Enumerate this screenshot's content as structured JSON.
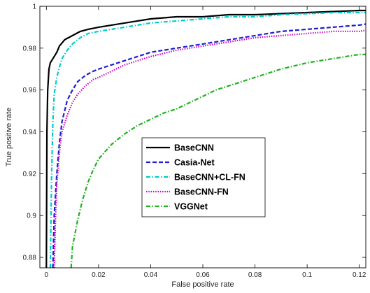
{
  "chart_data": {
    "type": "line",
    "xlabel": "False positive rate",
    "ylabel": "True positive rate",
    "xlim": [
      -0.0025,
      0.1225
    ],
    "ylim": [
      0.875,
      1.0
    ],
    "x_ticks": [
      0,
      0.02,
      0.04,
      0.06,
      0.08,
      0.1,
      0.12
    ],
    "x_tick_labels": [
      "0",
      "0.02",
      "0.04",
      "0.06",
      "0.08",
      "0.1",
      "0.12"
    ],
    "y_ticks": [
      0.88,
      0.9,
      0.92,
      0.94,
      0.96,
      0.98,
      1.0
    ],
    "y_tick_labels": [
      "0.88",
      "0.9",
      "0.92",
      "0.94",
      "0.96",
      "0.98",
      "1"
    ],
    "grid": false,
    "legend_position": "center-left",
    "series": [
      {
        "name": "BaseCNN",
        "color": "#000000",
        "dash": "solid",
        "x": [
          0.0,
          0.0002,
          0.0005,
          0.001,
          0.0015,
          0.002,
          0.003,
          0.004,
          0.005,
          0.007,
          0.01,
          0.013,
          0.016,
          0.02,
          0.025,
          0.03,
          0.035,
          0.04,
          0.05,
          0.06,
          0.07,
          0.08,
          0.09,
          0.1,
          0.11,
          0.12,
          0.1225
        ],
        "y": [
          0.875,
          0.94,
          0.96,
          0.97,
          0.973,
          0.974,
          0.976,
          0.978,
          0.981,
          0.984,
          0.986,
          0.988,
          0.989,
          0.99,
          0.991,
          0.992,
          0.993,
          0.994,
          0.995,
          0.995,
          0.996,
          0.996,
          0.9965,
          0.997,
          0.9975,
          0.998,
          0.998
        ]
      },
      {
        "name": "Casia-Net",
        "color": "#1f1fd0",
        "dash": "dashed",
        "x": [
          0.0025,
          0.003,
          0.004,
          0.005,
          0.006,
          0.008,
          0.01,
          0.012,
          0.015,
          0.018,
          0.02,
          0.025,
          0.03,
          0.035,
          0.04,
          0.05,
          0.06,
          0.07,
          0.08,
          0.09,
          0.1,
          0.11,
          0.12,
          0.1225
        ],
        "y": [
          0.875,
          0.9,
          0.92,
          0.935,
          0.945,
          0.955,
          0.96,
          0.964,
          0.967,
          0.969,
          0.97,
          0.972,
          0.974,
          0.976,
          0.978,
          0.98,
          0.982,
          0.984,
          0.986,
          0.988,
          0.989,
          0.99,
          0.991,
          0.9915
        ]
      },
      {
        "name": "BaseCNN+CL-FN",
        "color": "#00cccc",
        "dash": "dashdot",
        "x": [
          0.0015,
          0.002,
          0.0025,
          0.003,
          0.004,
          0.005,
          0.006,
          0.008,
          0.01,
          0.013,
          0.016,
          0.02,
          0.025,
          0.03,
          0.035,
          0.04,
          0.05,
          0.06,
          0.07,
          0.08,
          0.09,
          0.1,
          0.11,
          0.12,
          0.1225
        ],
        "y": [
          0.875,
          0.92,
          0.945,
          0.958,
          0.966,
          0.971,
          0.975,
          0.979,
          0.982,
          0.985,
          0.987,
          0.988,
          0.989,
          0.99,
          0.991,
          0.992,
          0.993,
          0.994,
          0.995,
          0.995,
          0.996,
          0.9965,
          0.997,
          0.997,
          0.997
        ]
      },
      {
        "name": "BaseCNN-FN",
        "color": "#cc00cc",
        "dash": "dotted",
        "x": [
          0.003,
          0.0035,
          0.004,
          0.005,
          0.006,
          0.008,
          0.01,
          0.012,
          0.015,
          0.018,
          0.02,
          0.025,
          0.03,
          0.035,
          0.04,
          0.05,
          0.06,
          0.07,
          0.08,
          0.09,
          0.1,
          0.11,
          0.12,
          0.1225
        ],
        "y": [
          0.875,
          0.9,
          0.915,
          0.93,
          0.94,
          0.948,
          0.954,
          0.958,
          0.962,
          0.965,
          0.966,
          0.969,
          0.972,
          0.974,
          0.976,
          0.979,
          0.981,
          0.983,
          0.985,
          0.986,
          0.987,
          0.988,
          0.988,
          0.9885
        ]
      },
      {
        "name": "VGGNet",
        "color": "#1fb31f",
        "dash": "dashdot",
        "x": [
          0.0095,
          0.01,
          0.012,
          0.014,
          0.016,
          0.018,
          0.02,
          0.025,
          0.03,
          0.035,
          0.04,
          0.045,
          0.05,
          0.055,
          0.06,
          0.065,
          0.07,
          0.08,
          0.09,
          0.1,
          0.11,
          0.115,
          0.12,
          0.1225
        ],
        "y": [
          0.875,
          0.885,
          0.898,
          0.908,
          0.916,
          0.922,
          0.927,
          0.934,
          0.939,
          0.943,
          0.946,
          0.949,
          0.951,
          0.954,
          0.957,
          0.96,
          0.962,
          0.966,
          0.97,
          0.973,
          0.975,
          0.976,
          0.977,
          0.977
        ]
      }
    ]
  }
}
